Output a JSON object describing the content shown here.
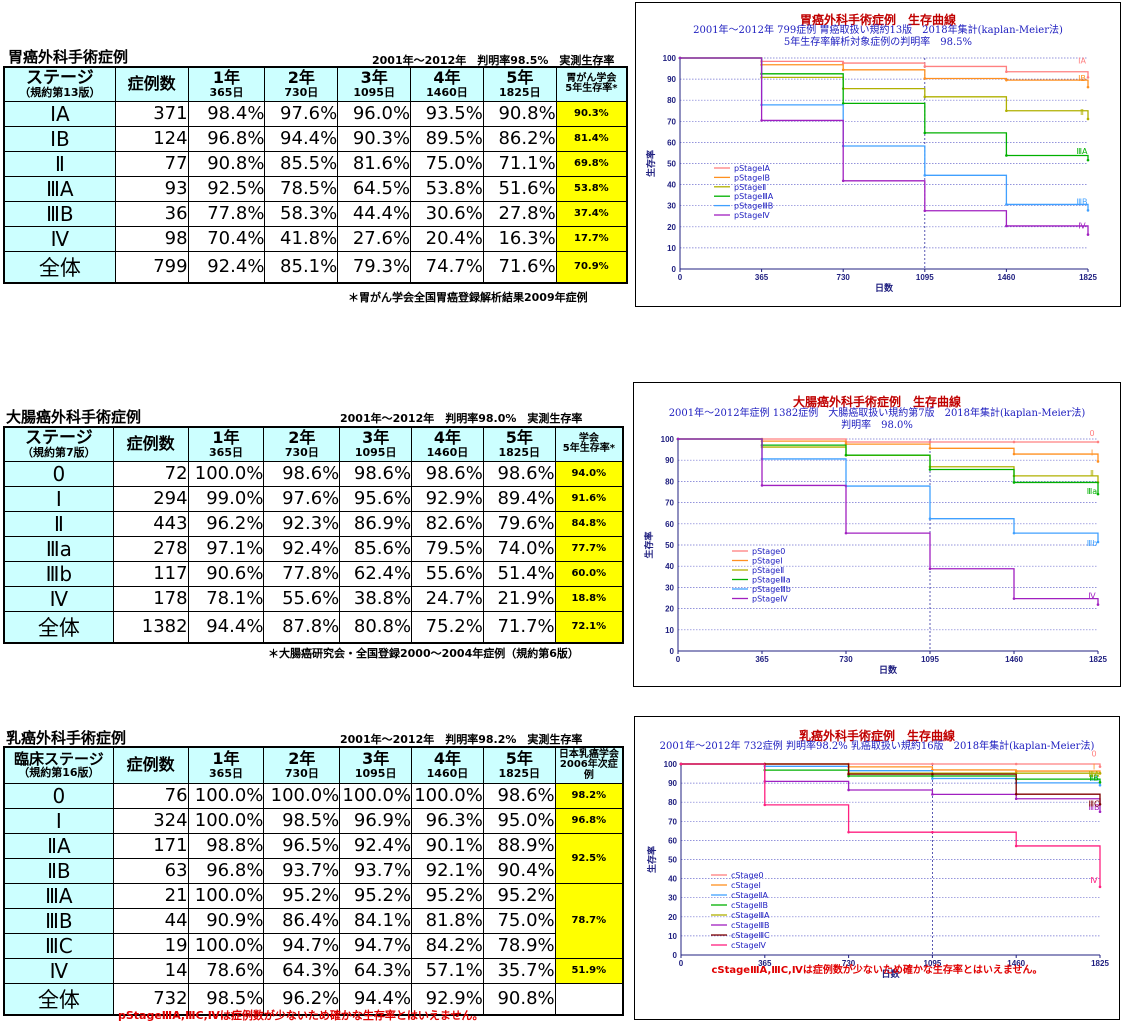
{
  "sections": [
    {
      "title": "胃癌外科手術症例",
      "meta": "2001年～2012年　判明率98.5%　実測生存率",
      "stage_header": [
        "ステージ",
        "（規約第13版）"
      ],
      "count_header": "症例数",
      "year_headers": [
        [
          "1年",
          "365日"
        ],
        [
          "2年",
          "730日"
        ],
        [
          "3年",
          "1095日"
        ],
        [
          "4年",
          "1460日"
        ],
        [
          "5年",
          "1825日"
        ]
      ],
      "society_header": [
        "胃がん学会",
        "5年生存率*"
      ],
      "rows": [
        {
          "stage": "ⅠA",
          "n": "371",
          "v": [
            "98.4%",
            "97.6%",
            "96.0%",
            "93.5%",
            "90.8%"
          ],
          "soc": "90.3%"
        },
        {
          "stage": "ⅠB",
          "n": "124",
          "v": [
            "96.8%",
            "94.4%",
            "90.3%",
            "89.5%",
            "86.2%"
          ],
          "soc": "81.4%"
        },
        {
          "stage": "Ⅱ",
          "n": "77",
          "v": [
            "90.8%",
            "85.5%",
            "81.6%",
            "75.0%",
            "71.1%"
          ],
          "soc": "69.8%"
        },
        {
          "stage": "ⅢA",
          "n": "93",
          "v": [
            "92.5%",
            "78.5%",
            "64.5%",
            "53.8%",
            "51.6%"
          ],
          "soc": "53.8%"
        },
        {
          "stage": "ⅢB",
          "n": "36",
          "v": [
            "77.8%",
            "58.3%",
            "44.4%",
            "30.6%",
            "27.8%"
          ],
          "soc": "37.4%"
        },
        {
          "stage": "Ⅳ",
          "n": "98",
          "v": [
            "70.4%",
            "41.8%",
            "27.6%",
            "20.4%",
            "16.3%"
          ],
          "soc": "17.7%"
        },
        {
          "stage": "全体",
          "n": "799",
          "v": [
            "92.4%",
            "85.1%",
            "79.3%",
            "74.7%",
            "71.6%"
          ],
          "soc": "70.9%"
        }
      ],
      "note": "＊胃がん学会全国胃癌登録解析結果2009年症例"
    },
    {
      "title": "大腸癌外科手術症例",
      "meta": "2001年～2012年　判明率98.0%　実測生存率",
      "stage_header": [
        "ステージ",
        "（規約第7版）"
      ],
      "count_header": "症例数",
      "year_headers": [
        [
          "1年",
          "365日"
        ],
        [
          "2年",
          "730日"
        ],
        [
          "3年",
          "1095日"
        ],
        [
          "4年",
          "1460日"
        ],
        [
          "5年",
          "1825日"
        ]
      ],
      "society_header": [
        "学会",
        "5年生存率*"
      ],
      "rows": [
        {
          "stage": "0",
          "n": "72",
          "v": [
            "100.0%",
            "98.6%",
            "98.6%",
            "98.6%",
            "98.6%"
          ],
          "soc": "94.0%"
        },
        {
          "stage": "Ⅰ",
          "n": "294",
          "v": [
            "99.0%",
            "97.6%",
            "95.6%",
            "92.9%",
            "89.4%"
          ],
          "soc": "91.6%"
        },
        {
          "stage": "Ⅱ",
          "n": "443",
          "v": [
            "96.2%",
            "92.3%",
            "86.9%",
            "82.6%",
            "79.6%"
          ],
          "soc": "84.8%"
        },
        {
          "stage": "Ⅲa",
          "n": "278",
          "v": [
            "97.1%",
            "92.4%",
            "85.6%",
            "79.5%",
            "74.0%"
          ],
          "soc": "77.7%"
        },
        {
          "stage": "Ⅲb",
          "n": "117",
          "v": [
            "90.6%",
            "77.8%",
            "62.4%",
            "55.6%",
            "51.4%"
          ],
          "soc": "60.0%"
        },
        {
          "stage": "Ⅳ",
          "n": "178",
          "v": [
            "78.1%",
            "55.6%",
            "38.8%",
            "24.7%",
            "21.9%"
          ],
          "soc": "18.8%"
        },
        {
          "stage": "全体",
          "n": "1382",
          "v": [
            "94.4%",
            "87.8%",
            "80.8%",
            "75.2%",
            "71.7%"
          ],
          "soc": "72.1%"
        }
      ],
      "note": "＊大腸癌研究会・全国登録2000～2004年症例（規約第6版）"
    },
    {
      "title": "乳癌外科手術症例",
      "meta": "2001年～2012年　判明率98.2%　実測生存率",
      "stage_header": [
        "臨床ステージ",
        "（規約第16版）"
      ],
      "count_header": "症例数",
      "year_headers": [
        [
          "1年",
          "365日"
        ],
        [
          "2年",
          "730日"
        ],
        [
          "3年",
          "1095日"
        ],
        [
          "4年",
          "1460日"
        ],
        [
          "5年",
          "1825日"
        ]
      ],
      "society_header": [
        "日本乳癌学会",
        "2006年次症例"
      ],
      "rows": [
        {
          "stage": "0",
          "n": "76",
          "v": [
            "100.0%",
            "100.0%",
            "100.0%",
            "100.0%",
            "98.6%"
          ],
          "soc": "98.2%"
        },
        {
          "stage": "Ⅰ",
          "n": "324",
          "v": [
            "100.0%",
            "98.5%",
            "96.9%",
            "96.3%",
            "95.0%"
          ],
          "soc": "96.8%"
        },
        {
          "stage": "ⅡA",
          "n": "171",
          "v": [
            "98.8%",
            "96.5%",
            "92.4%",
            "90.1%",
            "88.9%"
          ],
          "soc": "92.5%"
        },
        {
          "stage": "ⅡB",
          "n": "63",
          "v": [
            "96.8%",
            "93.7%",
            "93.7%",
            "92.1%",
            "90.4%"
          ],
          "soc": ""
        },
        {
          "stage": "ⅢA",
          "n": "21",
          "v": [
            "100.0%",
            "95.2%",
            "95.2%",
            "95.2%",
            "95.2%"
          ],
          "soc": "78.7%"
        },
        {
          "stage": "ⅢB",
          "n": "44",
          "v": [
            "90.9%",
            "86.4%",
            "84.1%",
            "81.8%",
            "75.0%"
          ],
          "soc": ""
        },
        {
          "stage": "ⅢC",
          "n": "19",
          "v": [
            "100.0%",
            "94.7%",
            "94.7%",
            "84.2%",
            "78.9%"
          ],
          "soc": ""
        },
        {
          "stage": "Ⅳ",
          "n": "14",
          "v": [
            "78.6%",
            "64.3%",
            "64.3%",
            "57.1%",
            "35.7%"
          ],
          "soc": "51.9%"
        },
        {
          "stage": "全体",
          "n": "732",
          "v": [
            "98.5%",
            "96.2%",
            "94.4%",
            "92.9%",
            "90.8%"
          ],
          "soc": ""
        }
      ],
      "note": "pStageⅢA,ⅢC,Ⅳは症例数が少ないため確かな生存率とはいえません。"
    }
  ],
  "chart_data": [
    {
      "type": "line",
      "title": "胃癌外科手術症例　生存曲線",
      "subtitle_lines": [
        "2001年～2012年 799症例 胃癌取扱い規約13版　2018年集計(kaplan-Meier法)",
        "5年生存率解析対象症例の判明率　98.5%"
      ],
      "xlabel": "日数",
      "ylabel": "生存率",
      "x_ticks": [
        0,
        365,
        730,
        1095,
        1460,
        1825
      ],
      "y_ticks": [
        0,
        10,
        20,
        30,
        40,
        50,
        60,
        70,
        80,
        90,
        100
      ],
      "xlim": [
        0,
        1825
      ],
      "ylim": [
        0,
        100
      ],
      "end_labels": [
        "ⅠA",
        "ⅠB",
        "Ⅱ",
        "ⅢA",
        "ⅢB",
        "Ⅳ"
      ],
      "series": [
        {
          "name": "pStageⅠA",
          "color": "#ff8080",
          "x": [
            0,
            365,
            730,
            1095,
            1460,
            1825
          ],
          "y": [
            100,
            98.4,
            97.6,
            96.0,
            93.5,
            90.8
          ]
        },
        {
          "name": "pStageⅠB",
          "color": "#ff9020",
          "x": [
            0,
            365,
            730,
            1095,
            1460,
            1825
          ],
          "y": [
            100,
            96.8,
            94.4,
            90.3,
            89.5,
            86.2
          ]
        },
        {
          "name": "pStageⅡ",
          "color": "#b0b000",
          "x": [
            0,
            365,
            730,
            1095,
            1460,
            1825
          ],
          "y": [
            100,
            90.8,
            85.5,
            81.6,
            75.0,
            71.1
          ]
        },
        {
          "name": "pStageⅢA",
          "color": "#00b000",
          "x": [
            0,
            365,
            730,
            1095,
            1460,
            1825
          ],
          "y": [
            100,
            92.5,
            78.5,
            64.5,
            53.8,
            51.6
          ]
        },
        {
          "name": "pStageⅢB",
          "color": "#40a0ff",
          "x": [
            0,
            365,
            730,
            1095,
            1460,
            1825
          ],
          "y": [
            100,
            77.8,
            58.3,
            44.4,
            30.6,
            27.8
          ]
        },
        {
          "name": "pStageⅣ",
          "color": "#a020c0",
          "x": [
            0,
            365,
            730,
            1095,
            1460,
            1825
          ],
          "y": [
            100,
            70.4,
            41.8,
            27.6,
            20.4,
            16.3
          ]
        }
      ]
    },
    {
      "type": "line",
      "title": "大腸癌外科手術症例　生存曲線",
      "subtitle_lines": [
        "2001年～2012年症例 1382症例　大腸癌取扱い規約第7版　2018年集計(kaplan-Meier法)",
        "判明率　98.0%"
      ],
      "xlabel": "日数",
      "ylabel": "生存率",
      "x_ticks": [
        0,
        365,
        730,
        1095,
        1460,
        1825
      ],
      "y_ticks": [
        0,
        10,
        20,
        30,
        40,
        50,
        60,
        70,
        80,
        90,
        100
      ],
      "xlim": [
        0,
        1825
      ],
      "ylim": [
        0,
        100
      ],
      "end_labels": [
        "0",
        "Ⅰ",
        "Ⅱ",
        "Ⅲa",
        "Ⅲb",
        "Ⅳ"
      ],
      "series": [
        {
          "name": "pStage0",
          "color": "#ff8080",
          "x": [
            0,
            365,
            730,
            1095,
            1460,
            1825
          ],
          "y": [
            100,
            100,
            98.6,
            98.6,
            98.6,
            98.6
          ]
        },
        {
          "name": "pStageⅠ",
          "color": "#ff9020",
          "x": [
            0,
            365,
            730,
            1095,
            1460,
            1825
          ],
          "y": [
            100,
            99.0,
            97.6,
            95.6,
            92.9,
            89.4
          ]
        },
        {
          "name": "pStageⅡ",
          "color": "#b0b000",
          "x": [
            0,
            365,
            730,
            1095,
            1460,
            1825
          ],
          "y": [
            100,
            96.2,
            92.3,
            86.9,
            82.6,
            79.6
          ]
        },
        {
          "name": "pStageⅢa",
          "color": "#00b000",
          "x": [
            0,
            365,
            730,
            1095,
            1460,
            1825
          ],
          "y": [
            100,
            97.1,
            92.4,
            85.6,
            79.5,
            74.0
          ]
        },
        {
          "name": "pStageⅢb",
          "color": "#40a0ff",
          "x": [
            0,
            365,
            730,
            1095,
            1460,
            1825
          ],
          "y": [
            100,
            90.6,
            77.8,
            62.4,
            55.6,
            51.4
          ]
        },
        {
          "name": "pStageⅣ",
          "color": "#a020c0",
          "x": [
            0,
            365,
            730,
            1095,
            1460,
            1825
          ],
          "y": [
            100,
            78.1,
            55.6,
            38.8,
            24.7,
            21.9
          ]
        }
      ]
    },
    {
      "type": "line",
      "title": "乳癌外科手術症例　生存曲線",
      "subtitle_lines": [
        "2001年～2012年 732症例 判明率98.2% 乳癌取扱い規約16版　2018年集計(kaplan-Meier法)"
      ],
      "xlabel": "日数",
      "ylabel": "生存率",
      "x_ticks": [
        0,
        365,
        730,
        1095,
        1460,
        1825
      ],
      "y_ticks": [
        0,
        10,
        20,
        30,
        40,
        50,
        60,
        70,
        80,
        90,
        100
      ],
      "xlim": [
        0,
        1825
      ],
      "ylim": [
        0,
        100
      ],
      "end_labels": [
        "0",
        "Ⅰ",
        "ⅡA",
        "ⅡB",
        "ⅢA",
        "ⅢB",
        "ⅢC",
        "Ⅳ"
      ],
      "note": "cStageⅢA,ⅢC,Ⅳは症例数が少ないため確かな生存率とはいえません。",
      "series": [
        {
          "name": "cStage0",
          "color": "#ff8080",
          "x": [
            0,
            365,
            730,
            1095,
            1460,
            1825
          ],
          "y": [
            100,
            100,
            100,
            100,
            100,
            98.6
          ]
        },
        {
          "name": "cStageⅠ",
          "color": "#ff9020",
          "x": [
            0,
            365,
            730,
            1095,
            1460,
            1825
          ],
          "y": [
            100,
            100,
            98.5,
            96.9,
            96.3,
            95.0
          ]
        },
        {
          "name": "cStageⅡA",
          "color": "#40a0ff",
          "x": [
            0,
            365,
            730,
            1095,
            1460,
            1825
          ],
          "y": [
            100,
            98.8,
            96.5,
            92.4,
            90.1,
            88.9
          ]
        },
        {
          "name": "cStageⅡB",
          "color": "#00b000",
          "x": [
            0,
            365,
            730,
            1095,
            1460,
            1825
          ],
          "y": [
            100,
            96.8,
            93.7,
            93.7,
            92.1,
            90.4
          ]
        },
        {
          "name": "cStageⅢA",
          "color": "#b0b000",
          "x": [
            0,
            365,
            730,
            1095,
            1460,
            1825
          ],
          "y": [
            100,
            100,
            95.2,
            95.2,
            95.2,
            95.2
          ]
        },
        {
          "name": "cStageⅢB",
          "color": "#a020c0",
          "x": [
            0,
            365,
            730,
            1095,
            1460,
            1825
          ],
          "y": [
            100,
            90.9,
            86.4,
            84.1,
            81.8,
            75.0
          ]
        },
        {
          "name": "cStageⅢC",
          "color": "#800000",
          "x": [
            0,
            365,
            730,
            1095,
            1460,
            1825
          ],
          "y": [
            100,
            100,
            94.7,
            94.7,
            84.2,
            78.9
          ]
        },
        {
          "name": "cStageⅣ",
          "color": "#ff2080",
          "x": [
            0,
            365,
            730,
            1095,
            1460,
            1825
          ],
          "y": [
            100,
            78.6,
            64.3,
            64.3,
            57.1,
            35.7
          ]
        }
      ]
    }
  ]
}
